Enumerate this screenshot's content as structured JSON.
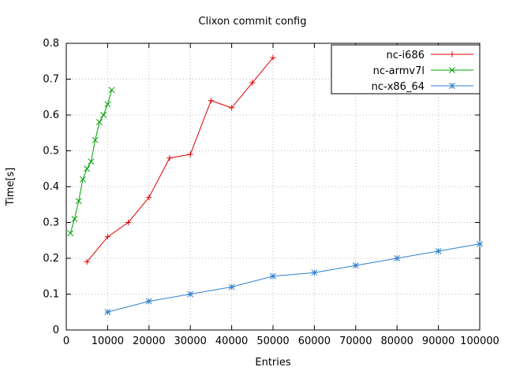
{
  "chart_data": {
    "type": "line",
    "title": "Clixon commit config",
    "xlabel": "Entries",
    "ylabel": "Time[s]",
    "xlim": [
      0,
      100000
    ],
    "ylim": [
      0,
      0.8
    ],
    "grid": true,
    "legend_position": "top-right",
    "xticks": {
      "values": [
        0,
        10000,
        20000,
        30000,
        40000,
        50000,
        60000,
        70000,
        80000,
        90000,
        100000
      ],
      "labels": [
        "0",
        "10000",
        "20000",
        "30000",
        "40000",
        "50000",
        "60000",
        "70000",
        "80000",
        "90000",
        "100000"
      ]
    },
    "yticks": {
      "values": [
        0,
        0.1,
        0.2,
        0.3,
        0.4,
        0.5,
        0.6,
        0.7,
        0.8
      ],
      "labels": [
        "0",
        "0.1",
        "0.2",
        "0.3",
        "0.4",
        "0.5",
        "0.6",
        "0.7",
        "0.8"
      ]
    },
    "colors": {
      "grid": "#bbbbbb",
      "border": "#000000",
      "background": "#ffffff"
    },
    "series": [
      {
        "name": "nc-i686",
        "color": "#e00000",
        "marker": "plus",
        "x": [
          5000,
          10000,
          15000,
          20000,
          25000,
          30000,
          35000,
          40000,
          45000,
          50000
        ],
        "y": [
          0.19,
          0.26,
          0.3,
          0.37,
          0.48,
          0.49,
          0.64,
          0.62,
          0.69,
          0.76
        ]
      },
      {
        "name": "nc-armv7l",
        "color": "#00a000",
        "marker": "cross",
        "x": [
          1000,
          2000,
          3000,
          4000,
          5000,
          6000,
          7000,
          8000,
          9000,
          10000,
          11000
        ],
        "y": [
          0.27,
          0.31,
          0.36,
          0.42,
          0.45,
          0.47,
          0.53,
          0.58,
          0.6,
          0.63,
          0.67
        ]
      },
      {
        "name": "nc-x86_64",
        "color": "#3080cf",
        "marker": "star",
        "x": [
          10000,
          20000,
          30000,
          40000,
          50000,
          60000,
          70000,
          80000,
          90000,
          100000
        ],
        "y": [
          0.05,
          0.08,
          0.1,
          0.12,
          0.15,
          0.16,
          0.18,
          0.2,
          0.22,
          0.24
        ]
      }
    ]
  }
}
